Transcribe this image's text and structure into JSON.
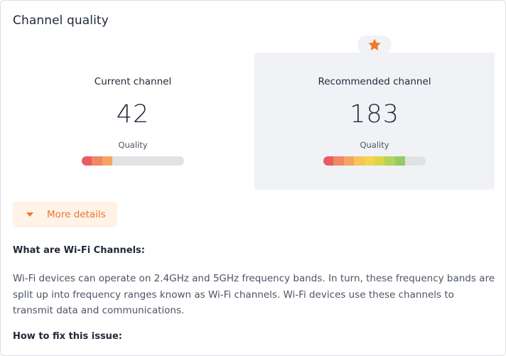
{
  "card": {
    "title": "Channel quality"
  },
  "current": {
    "label": "Current channel",
    "channel": "42",
    "quality_label": "Quality",
    "quality_segments": 3,
    "quality_total_segments": 10
  },
  "recommended": {
    "label": "Recommended channel",
    "channel": "183",
    "quality_label": "Quality",
    "quality_segments": 8,
    "quality_total_segments": 10,
    "badge_icon": "star-icon"
  },
  "colors": {
    "accent": "#e9743a",
    "star": "#f07a2a",
    "quality_scale": [
      "#e95c63",
      "#ee8866",
      "#f4a462",
      "#f7c35a",
      "#f2d54c",
      "#d9d64e",
      "#b7d25a",
      "#93cc62",
      "#76c46a",
      "#5fbd70"
    ]
  },
  "details_button": {
    "label": "More details",
    "icon": "caret-down-icon"
  },
  "info": {
    "heading": "What are Wi-Fi Channels:",
    "paragraph": "Wi-Fi devices can operate on 2.4GHz and 5GHz frequency bands. In turn, these frequency bands are split up into frequency ranges known as Wi-Fi channels. Wi-Fi devices use these channels to transmit data and communications.",
    "fix_heading": "How to fix this issue:"
  }
}
